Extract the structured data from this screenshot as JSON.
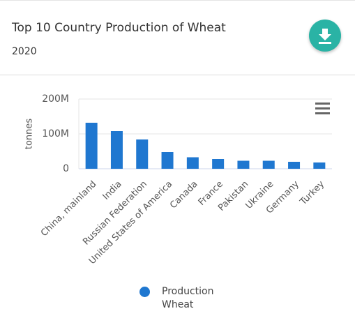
{
  "chart_data": {
    "type": "bar",
    "title": "Top 10 Country Production of Wheat",
    "subtitle": "2020",
    "y_label": "tonnes",
    "categories": [
      "China, mainland",
      "India",
      "Russian Federation",
      "United States of America",
      "Canada",
      "France",
      "Pakistan",
      "Ukraine",
      "Germany",
      "Turkey"
    ],
    "series": [
      {
        "name": "Production Wheat",
        "color": "#1f77d0",
        "values": [
          132000000,
          108000000,
          84000000,
          48000000,
          33000000,
          28000000,
          23000000,
          23000000,
          20000000,
          18000000
        ]
      }
    ],
    "ylim": [
      0,
      200000000
    ],
    "yticks": [
      0,
      {
        "value": 100000000,
        "label": "100M"
      },
      {
        "value": 200000000,
        "label": "200M"
      }
    ],
    "grid": true,
    "legend": "bottom"
  }
}
